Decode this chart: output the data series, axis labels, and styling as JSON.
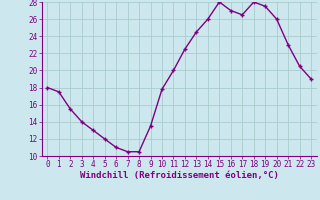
{
  "x": [
    0,
    1,
    2,
    3,
    4,
    5,
    6,
    7,
    8,
    9,
    10,
    11,
    12,
    13,
    14,
    15,
    16,
    17,
    18,
    19,
    20,
    21,
    22,
    23
  ],
  "y": [
    18,
    17.5,
    15.5,
    14,
    13,
    12,
    11,
    10.5,
    10.5,
    13.5,
    17.8,
    20,
    22.5,
    24.5,
    26,
    28,
    27,
    26.5,
    28,
    27.5,
    26,
    23,
    20.5,
    19
  ],
  "line_color": "#800080",
  "marker": "+",
  "marker_color": "#800080",
  "bg_color": "#cce8ee",
  "grid_color": "#aacccc",
  "xlabel": "Windchill (Refroidissement éolien,°C)",
  "xlabel_color": "#800080",
  "tick_color": "#800080",
  "spine_color": "#800080",
  "ylim": [
    10,
    28
  ],
  "xlim": [
    -0.5,
    23.5
  ],
  "yticks": [
    10,
    12,
    14,
    16,
    18,
    20,
    22,
    24,
    26,
    28
  ],
  "xticks": [
    0,
    1,
    2,
    3,
    4,
    5,
    6,
    7,
    8,
    9,
    10,
    11,
    12,
    13,
    14,
    15,
    16,
    17,
    18,
    19,
    20,
    21,
    22,
    23
  ],
  "linewidth": 1.0,
  "markersize": 3.5,
  "tick_fontsize": 5.5,
  "xlabel_fontsize": 6.5
}
